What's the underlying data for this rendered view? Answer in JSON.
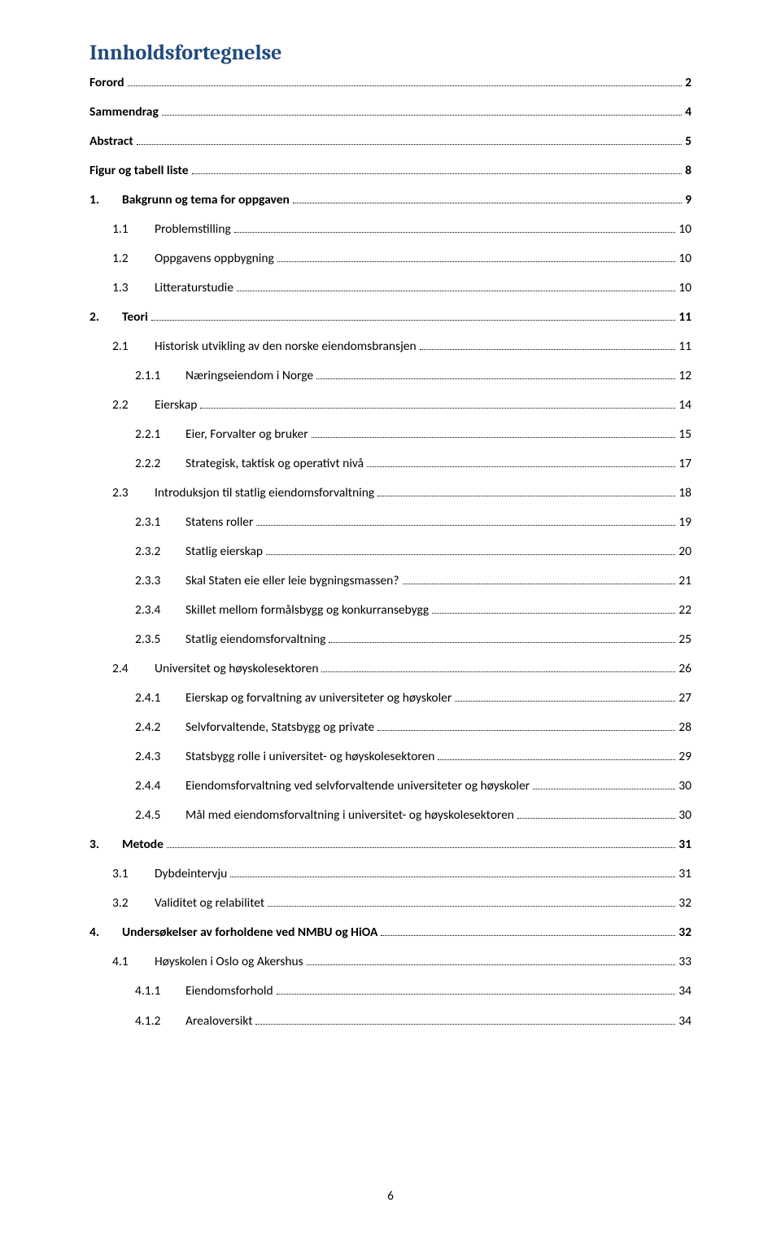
{
  "title": "Innholdsfortegnelse",
  "page_number": "6",
  "colors": {
    "title_color": "#1f497d",
    "text_color": "#000000",
    "background": "#ffffff"
  },
  "entries": [
    {
      "num": "",
      "text": "Forord",
      "page": "2",
      "level": 0,
      "bold": true,
      "no_num": true
    },
    {
      "num": "",
      "text": "Sammendrag",
      "page": "4",
      "level": 0,
      "bold": true,
      "no_num": true
    },
    {
      "num": "",
      "text": "Abstract",
      "page": "5",
      "level": 0,
      "bold": true,
      "no_num": true
    },
    {
      "num": "",
      "text": "Figur og tabell liste",
      "page": "8",
      "level": 0,
      "bold": true,
      "no_num": true
    },
    {
      "num": "1.",
      "text": "Bakgrunn og tema for oppgaven",
      "page": "9",
      "level": 0,
      "bold": true
    },
    {
      "num": "1.1",
      "text": "Problemstilling",
      "page": "10",
      "level": 1
    },
    {
      "num": "1.2",
      "text": "Oppgavens oppbygning",
      "page": "10",
      "level": 1
    },
    {
      "num": "1.3",
      "text": "Litteraturstudie",
      "page": "10",
      "level": 1
    },
    {
      "num": "2.",
      "text": "Teori",
      "page": "11",
      "level": 0,
      "bold": true
    },
    {
      "num": "2.1",
      "text": "Historisk utvikling av den norske eiendomsbransjen",
      "page": "11",
      "level": 1
    },
    {
      "num": "2.1.1",
      "text": "Næringseiendom i Norge",
      "page": "12",
      "level": 2
    },
    {
      "num": "2.2",
      "text": "Eierskap",
      "page": "14",
      "level": 1
    },
    {
      "num": "2.2.1",
      "text": "Eier, Forvalter og bruker",
      "page": "15",
      "level": 2
    },
    {
      "num": "2.2.2",
      "text": "Strategisk, taktisk og operativt nivå",
      "page": "17",
      "level": 2
    },
    {
      "num": "2.3",
      "text": "Introduksjon til statlig eiendomsforvaltning",
      "page": "18",
      "level": 1
    },
    {
      "num": "2.3.1",
      "text": "Statens roller",
      "page": "19",
      "level": 2
    },
    {
      "num": "2.3.2",
      "text": "Statlig eierskap",
      "page": "20",
      "level": 2
    },
    {
      "num": "2.3.3",
      "text": "Skal Staten eie eller leie bygningsmassen?",
      "page": "21",
      "level": 2
    },
    {
      "num": "2.3.4",
      "text": "Skillet mellom formålsbygg og konkurransebygg",
      "page": "22",
      "level": 2
    },
    {
      "num": "2.3.5",
      "text": "Statlig eiendomsforvaltning",
      "page": "25",
      "level": 2
    },
    {
      "num": "2.4",
      "text": "Universitet og høyskolesektoren",
      "page": "26",
      "level": 1
    },
    {
      "num": "2.4.1",
      "text": "Eierskap og forvaltning av universiteter og høyskoler",
      "page": "27",
      "level": 2
    },
    {
      "num": "2.4.2",
      "text": "Selvforvaltende, Statsbygg og private",
      "page": "28",
      "level": 2
    },
    {
      "num": "2.4.3",
      "text": "Statsbygg rolle i universitet- og høyskolesektoren",
      "page": "29",
      "level": 2
    },
    {
      "num": "2.4.4",
      "text": "Eiendomsforvaltning ved selvforvaltende universiteter og høyskoler",
      "page": "30",
      "level": 2
    },
    {
      "num": "2.4.5",
      "text": "Mål med eiendomsforvaltning i universitet- og høyskolesektoren",
      "page": "30",
      "level": 2
    },
    {
      "num": "3.",
      "text": "Metode",
      "page": "31",
      "level": 0,
      "bold": true
    },
    {
      "num": "3.1",
      "text": "Dybdeintervju",
      "page": "31",
      "level": 1
    },
    {
      "num": "3.2",
      "text": "Validitet og relabilitet",
      "page": "32",
      "level": 1
    },
    {
      "num": "4.",
      "text": "Undersøkelser av forholdene ved NMBU og HiOA",
      "page": "32",
      "level": 0,
      "bold": true
    },
    {
      "num": "4.1",
      "text": "Høyskolen i Oslo og Akershus",
      "page": "33",
      "level": 1
    },
    {
      "num": "4.1.1",
      "text": "Eiendomsforhold",
      "page": "34",
      "level": 2
    },
    {
      "num": "4.1.2",
      "text": "Arealoversikt",
      "page": "34",
      "level": 2
    }
  ]
}
